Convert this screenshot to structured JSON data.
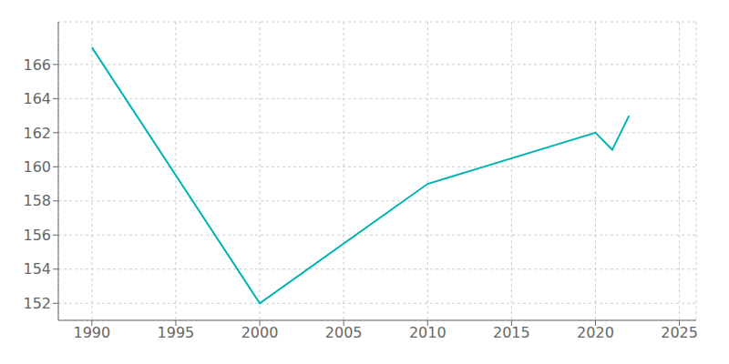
{
  "chart_data": {
    "type": "line",
    "x": [
      1990,
      2000,
      2010,
      2020,
      2021,
      2022
    ],
    "values": [
      167,
      152,
      159,
      162,
      161,
      163
    ],
    "color": "#00b4b4",
    "xlim": [
      1988,
      2026
    ],
    "ylim": [
      151,
      168.5
    ],
    "xticks": [
      1990,
      1995,
      2000,
      2005,
      2010,
      2015,
      2020,
      2025
    ],
    "yticks": [
      152,
      154,
      156,
      158,
      160,
      162,
      164,
      166
    ],
    "grid": true
  }
}
